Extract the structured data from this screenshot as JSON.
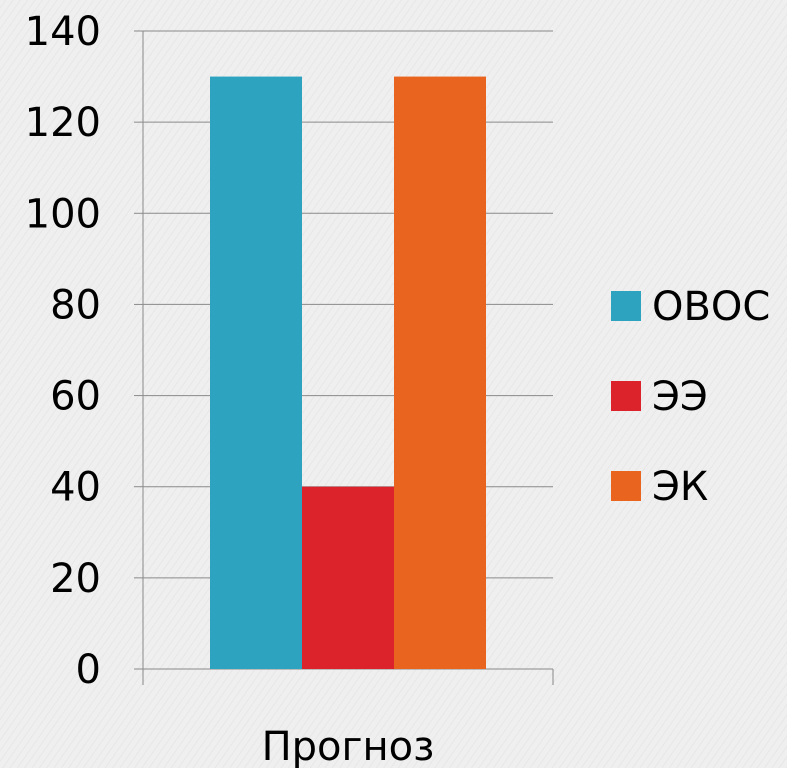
{
  "chart_data": {
    "type": "bar",
    "categories": [
      "Прогноз"
    ],
    "series": [
      {
        "name": "ОВОС",
        "values": [
          130
        ],
        "color": "#2da3c0"
      },
      {
        "name": "ЭЭ",
        "values": [
          40
        ],
        "color": "#dc232b"
      },
      {
        "name": "ЭК",
        "values": [
          130
        ],
        "color": "#e9641f"
      }
    ],
    "ylim": [
      0,
      140
    ],
    "y_ticks": [
      "0",
      "20",
      "40",
      "60",
      "80",
      "100",
      "120",
      "140"
    ],
    "grid": true,
    "legend_position": "right"
  }
}
